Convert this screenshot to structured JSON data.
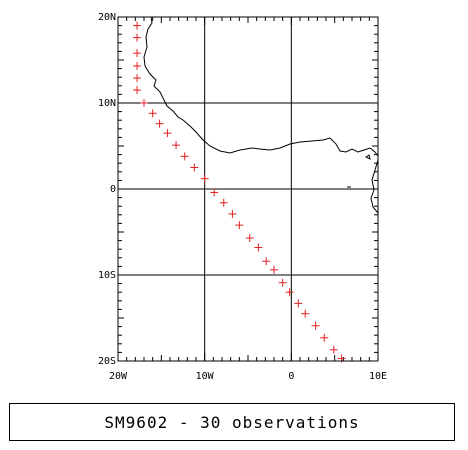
{
  "map": {
    "lon_range": [
      -20,
      10
    ],
    "lat_range": [
      -20,
      20
    ],
    "x_ticks": [
      {
        "value": -20,
        "label": "20W"
      },
      {
        "value": -10,
        "label": "10W"
      },
      {
        "value": 0,
        "label": "0"
      },
      {
        "value": 10,
        "label": "10E"
      }
    ],
    "y_ticks": [
      {
        "value": 20,
        "label": "20N"
      },
      {
        "value": 10,
        "label": "10N"
      },
      {
        "value": 0,
        "label": "0"
      },
      {
        "value": -10,
        "label": "10S"
      },
      {
        "value": -20,
        "label": "20S"
      }
    ],
    "grid_lon": [
      -10,
      0
    ],
    "grid_lat": [
      10,
      0,
      -10
    ],
    "marker": "+",
    "marker_color": "#e02020",
    "observations": [
      {
        "lon": -17.8,
        "lat": 19.0
      },
      {
        "lon": -17.8,
        "lat": 17.6
      },
      {
        "lon": -17.8,
        "lat": 15.8
      },
      {
        "lon": -17.8,
        "lat": 14.3
      },
      {
        "lon": -17.8,
        "lat": 12.9
      },
      {
        "lon": -17.8,
        "lat": 11.5
      },
      {
        "lon": -17.0,
        "lat": 10.0
      },
      {
        "lon": -16.0,
        "lat": 8.8
      },
      {
        "lon": -15.2,
        "lat": 7.6
      },
      {
        "lon": -14.3,
        "lat": 6.5
      },
      {
        "lon": -13.3,
        "lat": 5.1
      },
      {
        "lon": -12.3,
        "lat": 3.8
      },
      {
        "lon": -11.2,
        "lat": 2.5
      },
      {
        "lon": -10.0,
        "lat": 1.2
      },
      {
        "lon": -8.9,
        "lat": -0.4
      },
      {
        "lon": -7.8,
        "lat": -1.6
      },
      {
        "lon": -6.8,
        "lat": -2.9
      },
      {
        "lon": -6.0,
        "lat": -4.2
      },
      {
        "lon": -4.8,
        "lat": -5.7
      },
      {
        "lon": -3.8,
        "lat": -6.8
      },
      {
        "lon": -2.9,
        "lat": -8.4
      },
      {
        "lon": -2.0,
        "lat": -9.4
      },
      {
        "lon": -1.0,
        "lat": -10.9
      },
      {
        "lon": -0.2,
        "lat": -12.0
      },
      {
        "lon": 0.8,
        "lat": -13.3
      },
      {
        "lon": 1.6,
        "lat": -14.5
      },
      {
        "lon": 2.8,
        "lat": -15.9
      },
      {
        "lon": 3.8,
        "lat": -17.3
      },
      {
        "lon": 4.9,
        "lat": -18.7
      },
      {
        "lon": 5.8,
        "lat": -19.7
      }
    ]
  },
  "caption": "SM9602 - 30 observations"
}
